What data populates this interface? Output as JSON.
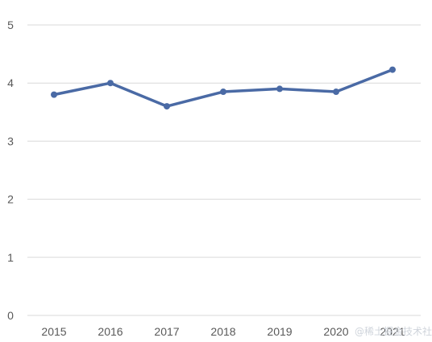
{
  "chart_data": {
    "type": "line",
    "title": "",
    "xlabel": "",
    "ylabel": "",
    "categories": [
      "2015",
      "2016",
      "2017",
      "2018",
      "2019",
      "2020",
      "2021"
    ],
    "series": [
      {
        "values": [
          3.8,
          4.0,
          3.6,
          3.85,
          3.9,
          3.85,
          4.23
        ]
      }
    ],
    "ylim": [
      0,
      5
    ],
    "yticks": [
      "0",
      "1",
      "2",
      "3",
      "4",
      "5"
    ],
    "grid": true,
    "legend": "none",
    "colors": {
      "series": "#4a6aa5",
      "grid": "#d9d9d9",
      "tick_text": "#595959"
    }
  },
  "watermark": "@稀土掘金技术社区"
}
